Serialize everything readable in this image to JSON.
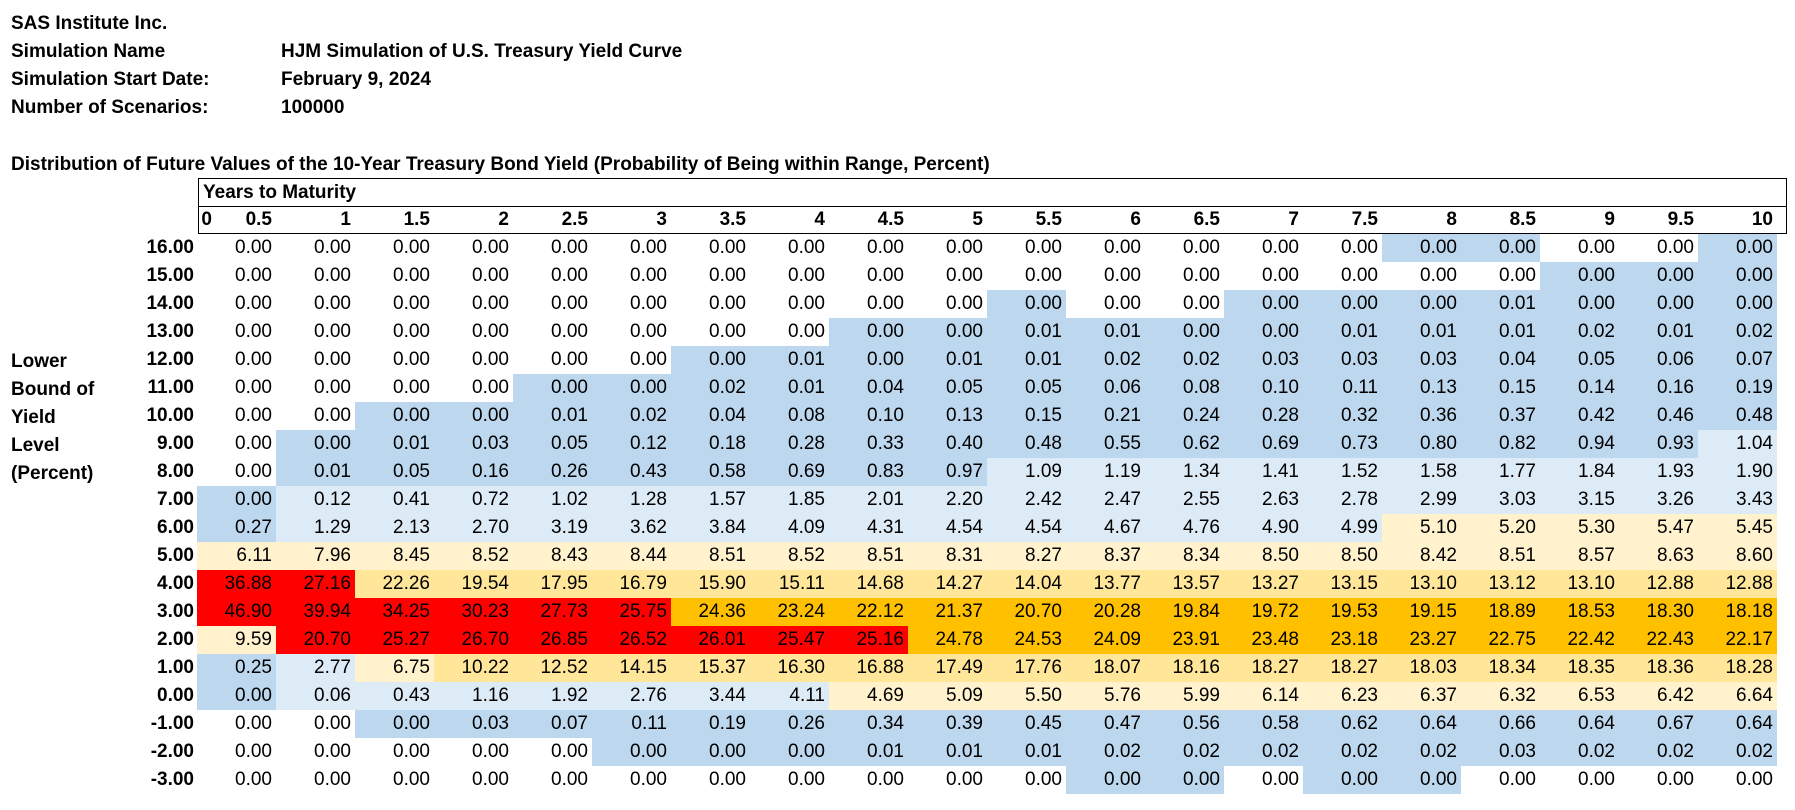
{
  "header": {
    "company": "SAS Institute Inc.",
    "simulation_name_label": "Simulation Name",
    "simulation_name": "HJM Simulation of U.S. Treasury Yield Curve",
    "start_date_label": "Simulation Start Date:",
    "start_date": "February 9, 2024",
    "scenarios_label": "Number of Scenarios:",
    "scenarios": "100000"
  },
  "table": {
    "title": "Distribution of Future Values of the 10-Year Treasury Bond Yield (Probability of Being within Range, Percent)",
    "column_group_label": "Years to Maturity",
    "corner_label": "0",
    "side_label": [
      "Lower",
      "Bound of",
      "Yield",
      "Level",
      "(Percent)"
    ],
    "columns": [
      "0.5",
      "1",
      "1.5",
      "2",
      "2.5",
      "3",
      "3.5",
      "4",
      "4.5",
      "5",
      "5.5",
      "6",
      "6.5",
      "7",
      "7.5",
      "8",
      "8.5",
      "9",
      "9.5",
      "10"
    ],
    "rows": [
      {
        "bound": "16.00",
        "values": [
          "0.00",
          "0.00",
          "0.00",
          "0.00",
          "0.00",
          "0.00",
          "0.00",
          "0.00",
          "0.00",
          "0.00",
          "0.00",
          "0.00",
          "0.00",
          "0.00",
          "0.00",
          "0.00",
          "0.00",
          "0.00",
          "0.00",
          "0.00"
        ]
      },
      {
        "bound": "15.00",
        "values": [
          "0.00",
          "0.00",
          "0.00",
          "0.00",
          "0.00",
          "0.00",
          "0.00",
          "0.00",
          "0.00",
          "0.00",
          "0.00",
          "0.00",
          "0.00",
          "0.00",
          "0.00",
          "0.00",
          "0.00",
          "0.00",
          "0.00",
          "0.00"
        ]
      },
      {
        "bound": "14.00",
        "values": [
          "0.00",
          "0.00",
          "0.00",
          "0.00",
          "0.00",
          "0.00",
          "0.00",
          "0.00",
          "0.00",
          "0.00",
          "0.00",
          "0.00",
          "0.00",
          "0.00",
          "0.00",
          "0.00",
          "0.01",
          "0.00",
          "0.00",
          "0.00"
        ]
      },
      {
        "bound": "13.00",
        "values": [
          "0.00",
          "0.00",
          "0.00",
          "0.00",
          "0.00",
          "0.00",
          "0.00",
          "0.00",
          "0.00",
          "0.00",
          "0.01",
          "0.01",
          "0.00",
          "0.00",
          "0.01",
          "0.01",
          "0.01",
          "0.02",
          "0.01",
          "0.02"
        ]
      },
      {
        "bound": "12.00",
        "values": [
          "0.00",
          "0.00",
          "0.00",
          "0.00",
          "0.00",
          "0.00",
          "0.00",
          "0.01",
          "0.00",
          "0.01",
          "0.01",
          "0.02",
          "0.02",
          "0.03",
          "0.03",
          "0.03",
          "0.04",
          "0.05",
          "0.06",
          "0.07"
        ]
      },
      {
        "bound": "11.00",
        "values": [
          "0.00",
          "0.00",
          "0.00",
          "0.00",
          "0.00",
          "0.00",
          "0.02",
          "0.01",
          "0.04",
          "0.05",
          "0.05",
          "0.06",
          "0.08",
          "0.10",
          "0.11",
          "0.13",
          "0.15",
          "0.14",
          "0.16",
          "0.19"
        ]
      },
      {
        "bound": "10.00",
        "values": [
          "0.00",
          "0.00",
          "0.00",
          "0.00",
          "0.01",
          "0.02",
          "0.04",
          "0.08",
          "0.10",
          "0.13",
          "0.15",
          "0.21",
          "0.24",
          "0.28",
          "0.32",
          "0.36",
          "0.37",
          "0.42",
          "0.46",
          "0.48"
        ]
      },
      {
        "bound": "9.00",
        "values": [
          "0.00",
          "0.00",
          "0.01",
          "0.03",
          "0.05",
          "0.12",
          "0.18",
          "0.28",
          "0.33",
          "0.40",
          "0.48",
          "0.55",
          "0.62",
          "0.69",
          "0.73",
          "0.80",
          "0.82",
          "0.94",
          "0.93",
          "1.04"
        ]
      },
      {
        "bound": "8.00",
        "values": [
          "0.00",
          "0.01",
          "0.05",
          "0.16",
          "0.26",
          "0.43",
          "0.58",
          "0.69",
          "0.83",
          "0.97",
          "1.09",
          "1.19",
          "1.34",
          "1.41",
          "1.52",
          "1.58",
          "1.77",
          "1.84",
          "1.93",
          "1.90"
        ]
      },
      {
        "bound": "7.00",
        "values": [
          "0.00",
          "0.12",
          "0.41",
          "0.72",
          "1.02",
          "1.28",
          "1.57",
          "1.85",
          "2.01",
          "2.20",
          "2.42",
          "2.47",
          "2.55",
          "2.63",
          "2.78",
          "2.99",
          "3.03",
          "3.15",
          "3.26",
          "3.43"
        ]
      },
      {
        "bound": "6.00",
        "values": [
          "0.27",
          "1.29",
          "2.13",
          "2.70",
          "3.19",
          "3.62",
          "3.84",
          "4.09",
          "4.31",
          "4.54",
          "4.54",
          "4.67",
          "4.76",
          "4.90",
          "4.99",
          "5.10",
          "5.20",
          "5.30",
          "5.47",
          "5.45"
        ]
      },
      {
        "bound": "5.00",
        "values": [
          "6.11",
          "7.96",
          "8.45",
          "8.52",
          "8.43",
          "8.44",
          "8.51",
          "8.52",
          "8.51",
          "8.31",
          "8.27",
          "8.37",
          "8.34",
          "8.50",
          "8.50",
          "8.42",
          "8.51",
          "8.57",
          "8.63",
          "8.60"
        ]
      },
      {
        "bound": "4.00",
        "values": [
          "36.88",
          "27.16",
          "22.26",
          "19.54",
          "17.95",
          "16.79",
          "15.90",
          "15.11",
          "14.68",
          "14.27",
          "14.04",
          "13.77",
          "13.57",
          "13.27",
          "13.15",
          "13.10",
          "13.12",
          "13.10",
          "12.88",
          "12.88"
        ]
      },
      {
        "bound": "3.00",
        "values": [
          "46.90",
          "39.94",
          "34.25",
          "30.23",
          "27.73",
          "25.75",
          "24.36",
          "23.24",
          "22.12",
          "21.37",
          "20.70",
          "20.28",
          "19.84",
          "19.72",
          "19.53",
          "19.15",
          "18.89",
          "18.53",
          "18.30",
          "18.18"
        ]
      },
      {
        "bound": "2.00",
        "values": [
          "9.59",
          "20.70",
          "25.27",
          "26.70",
          "26.85",
          "26.52",
          "26.01",
          "25.47",
          "25.16",
          "24.78",
          "24.53",
          "24.09",
          "23.91",
          "23.48",
          "23.18",
          "23.27",
          "22.75",
          "22.42",
          "22.43",
          "22.17"
        ]
      },
      {
        "bound": "1.00",
        "values": [
          "0.25",
          "2.77",
          "6.75",
          "10.22",
          "12.52",
          "14.15",
          "15.37",
          "16.30",
          "16.88",
          "17.49",
          "17.76",
          "18.07",
          "18.16",
          "18.27",
          "18.27",
          "18.03",
          "18.34",
          "18.35",
          "18.36",
          "18.28"
        ]
      },
      {
        "bound": "0.00",
        "values": [
          "0.00",
          "0.06",
          "0.43",
          "1.16",
          "1.92",
          "2.76",
          "3.44",
          "4.11",
          "4.69",
          "5.09",
          "5.50",
          "5.76",
          "5.99",
          "6.14",
          "6.23",
          "6.37",
          "6.32",
          "6.53",
          "6.42",
          "6.64"
        ]
      },
      {
        "bound": "-1.00",
        "values": [
          "0.00",
          "0.00",
          "0.00",
          "0.03",
          "0.07",
          "0.11",
          "0.19",
          "0.26",
          "0.34",
          "0.39",
          "0.45",
          "0.47",
          "0.56",
          "0.58",
          "0.62",
          "0.64",
          "0.66",
          "0.64",
          "0.67",
          "0.64"
        ]
      },
      {
        "bound": "-2.00",
        "values": [
          "0.00",
          "0.00",
          "0.00",
          "0.00",
          "0.00",
          "0.00",
          "0.00",
          "0.00",
          "0.01",
          "0.01",
          "0.01",
          "0.02",
          "0.02",
          "0.02",
          "0.02",
          "0.02",
          "0.03",
          "0.02",
          "0.02",
          "0.02"
        ]
      },
      {
        "bound": "-3.00",
        "values": [
          "0.00",
          "0.00",
          "0.00",
          "0.00",
          "0.00",
          "0.00",
          "0.00",
          "0.00",
          "0.00",
          "0.00",
          "0.00",
          "0.00",
          "0.00",
          "0.00",
          "0.00",
          "0.00",
          "0.00",
          "0.00",
          "0.00",
          "0.00"
        ]
      }
    ],
    "fill_colors": {
      "W": "#ffffff",
      "B": "#bdd7ee",
      "L": "#ddebf7",
      "Y": "#fff2cc",
      "C": "#ffe699",
      "G": "#ffc000",
      "R": "#ff0000"
    },
    "fill_map": [
      "WWWWWWWWWWWWWWWBBWWB",
      "WWWWWWWWWWWWWWWWWBBB",
      "WWWWWWWWWWBWWBBBBBBB",
      "WWWWWWWWBBBBBBBBBBBB",
      "WWWWWWBBBBBBBBBBBBBB",
      "WWWWBBBBBBBBBBBBBBBB",
      "WWBBBBBBBBBBBBBBBBBB",
      "WBBBBBBBBBBBBBBBBBBL",
      "WBBBBBBBBBLLLLLLLLLL",
      "BLLLLLLLLLLLLLLLLLLL",
      "BLLLLLLLLLLLLLLYYYYY",
      "YYYYYYYYYYYYYYYYYYYY",
      "RRCCCCCCCCCCCCCCCCCC",
      "RRRRRRGGGGGGGGGGGGGG",
      "YRRRRRRRRGGGGGGGGGGG",
      "BLYCCCCCCCCCCCCCCCCC",
      "BLLLLLLLYYYYYYYYYYYY",
      "WWBBBBBBBBBBBBBBBBBB",
      "WWWWWBBBBBBBBBBBBBBB",
      "WWWWWWWWWWWBBWBBWWWW"
    ]
  }
}
